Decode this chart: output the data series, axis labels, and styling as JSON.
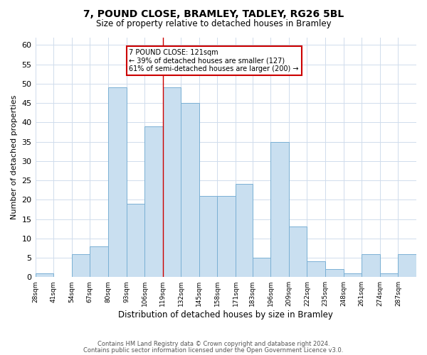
{
  "title": "7, POUND CLOSE, BRAMLEY, TADLEY, RG26 5BL",
  "subtitle": "Size of property relative to detached houses in Bramley",
  "xlabel": "Distribution of detached houses by size in Bramley",
  "ylabel": "Number of detached properties",
  "bar_color": "#c9dff0",
  "bar_edge_color": "#7ab0d4",
  "background_color": "#ffffff",
  "grid_color": "#d0dcec",
  "bin_labels": [
    "28sqm",
    "41sqm",
    "54sqm",
    "67sqm",
    "80sqm",
    "93sqm",
    "106sqm",
    "119sqm",
    "132sqm",
    "145sqm",
    "158sqm",
    "171sqm",
    "183sqm",
    "196sqm",
    "209sqm",
    "222sqm",
    "235sqm",
    "248sqm",
    "261sqm",
    "274sqm",
    "287sqm"
  ],
  "bin_edges": [
    28,
    41,
    54,
    67,
    80,
    93,
    106,
    119,
    132,
    145,
    158,
    171,
    183,
    196,
    209,
    222,
    235,
    248,
    261,
    274,
    287,
    300
  ],
  "counts": [
    1,
    0,
    6,
    8,
    49,
    19,
    39,
    49,
    45,
    21,
    21,
    24,
    5,
    35,
    13,
    4,
    2,
    1,
    6,
    1,
    6
  ],
  "property_line_x": 119,
  "annotation_line1": "7 POUND CLOSE: 121sqm",
  "annotation_line2": "← 39% of detached houses are smaller (127)",
  "annotation_line3": "61% of semi-detached houses are larger (200) →",
  "footnote1": "Contains HM Land Registry data © Crown copyright and database right 2024.",
  "footnote2": "Contains public sector information licensed under the Open Government Licence v3.0.",
  "ylim": [
    0,
    62
  ],
  "yticks": [
    0,
    5,
    10,
    15,
    20,
    25,
    30,
    35,
    40,
    45,
    50,
    55,
    60
  ]
}
